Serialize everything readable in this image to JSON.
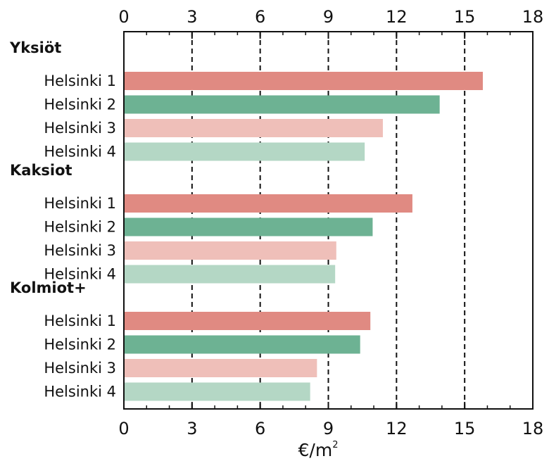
{
  "chart_data": {
    "type": "bar",
    "orientation": "horizontal",
    "xlabel": "€/m",
    "xlabel_superscript": "2",
    "xlim": [
      0,
      18
    ],
    "xticks": [
      "0",
      "3",
      "6",
      "9",
      "12",
      "15",
      "18"
    ],
    "grid": "vertical dashed at major ticks",
    "groups": [
      {
        "name": "Yksiöt",
        "bars": [
          {
            "label": "Helsinki 1",
            "value": 15.8
          },
          {
            "label": "Helsinki 2",
            "value": 13.9
          },
          {
            "label": "Helsinki 3",
            "value": 11.4
          },
          {
            "label": "Helsinki 4",
            "value": 10.6
          }
        ]
      },
      {
        "name": "Kaksiot",
        "bars": [
          {
            "label": "Helsinki 1",
            "value": 12.7
          },
          {
            "label": "Helsinki 2",
            "value": 10.95
          },
          {
            "label": "Helsinki 3",
            "value": 9.35
          },
          {
            "label": "Helsinki 4",
            "value": 9.3
          }
        ]
      },
      {
        "name": "Kolmiot+",
        "bars": [
          {
            "label": "Helsinki 1",
            "value": 10.85
          },
          {
            "label": "Helsinki 2",
            "value": 10.4
          },
          {
            "label": "Helsinki 3",
            "value": 8.5
          },
          {
            "label": "Helsinki 4",
            "value": 8.2
          }
        ]
      }
    ],
    "bar_colors": [
      "#e08a82",
      "#6db293",
      "#efbfb9",
      "#b4d7c5"
    ]
  }
}
